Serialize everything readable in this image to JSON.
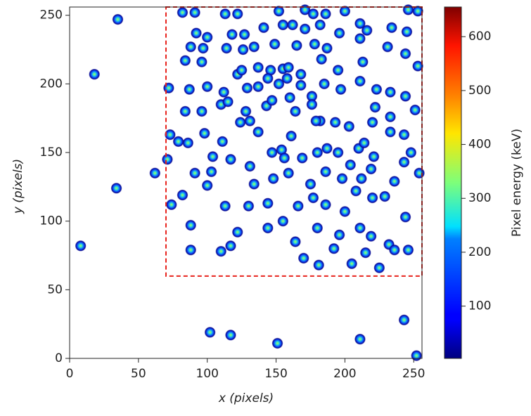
{
  "chart_data": {
    "type": "scatter",
    "xlabel": "x (pixels)",
    "ylabel": "y (pixels)",
    "xlim": [
      0,
      256
    ],
    "ylim": [
      0,
      256
    ],
    "xticks": [
      0,
      50,
      100,
      150,
      200,
      250
    ],
    "yticks": [
      0,
      50,
      100,
      150,
      200,
      250
    ],
    "region": {
      "x": [
        70,
        256
      ],
      "y": [
        60,
        256
      ],
      "color": "#e8231d"
    },
    "colorbar": {
      "label": "Pixel energy (keV)",
      "lim": [
        3,
        655
      ],
      "ticks": [
        100,
        200,
        300,
        400,
        500,
        600
      ],
      "colormap": "jet"
    },
    "x": [
      35,
      18,
      62,
      34,
      8,
      102,
      117,
      151,
      211,
      243,
      252,
      82,
      91,
      113,
      122,
      152,
      171,
      177,
      186,
      200,
      246,
      253,
      92,
      100,
      118,
      127,
      141,
      155,
      162,
      171,
      182,
      196,
      211,
      216,
      234,
      245,
      88,
      97,
      114,
      126,
      134,
      149,
      165,
      178,
      187,
      211,
      231,
      244,
      84,
      96,
      122,
      125,
      137,
      146,
      155,
      159,
      168,
      183,
      195,
      213,
      253,
      72,
      87,
      100,
      112,
      129,
      137,
      144,
      152,
      158,
      168,
      176,
      185,
      197,
      211,
      223,
      233,
      244,
      84,
      96,
      110,
      115,
      128,
      143,
      147,
      160,
      164,
      176,
      182,
      193,
      222,
      233,
      251,
      73,
      79,
      86,
      98,
      111,
      124,
      131,
      137,
      161,
      179,
      203,
      220,
      233,
      243,
      71,
      91,
      104,
      117,
      131,
      147,
      154,
      156,
      169,
      180,
      187,
      195,
      204,
      210,
      214,
      221,
      243,
      248,
      254,
      103,
      134,
      148,
      159,
      175,
      186,
      198,
      212,
      219,
      236,
      74,
      82,
      100,
      113,
      130,
      144,
      166,
      177,
      186,
      200,
      208,
      220,
      229,
      244,
      88,
      122,
      144,
      155,
      164,
      180,
      196,
      211,
      219,
      232,
      88,
      110,
      117,
      170,
      181,
      192,
      205,
      215,
      236,
      246,
      225
    ],
    "y": [
      247,
      207,
      135,
      124,
      82,
      19,
      17,
      11,
      14,
      28,
      2,
      252,
      252,
      251,
      251,
      253,
      254,
      251,
      251,
      253,
      254,
      253,
      237,
      234,
      236,
      236,
      241,
      243,
      243,
      240,
      243,
      237,
      244,
      239,
      241,
      238,
      227,
      226,
      226,
      225,
      227,
      229,
      228,
      229,
      226,
      233,
      227,
      222,
      217,
      216,
      207,
      210,
      212,
      210,
      211,
      212,
      207,
      218,
      210,
      216,
      213,
      197,
      196,
      198,
      194,
      197,
      198,
      204,
      200,
      204,
      199,
      191,
      200,
      196,
      202,
      196,
      194,
      191,
      180,
      180,
      185,
      187,
      180,
      184,
      188,
      190,
      180,
      185,
      173,
      172,
      183,
      176,
      181,
      163,
      158,
      157,
      164,
      158,
      172,
      173,
      165,
      162,
      173,
      169,
      172,
      165,
      163,
      145,
      135,
      147,
      145,
      140,
      150,
      152,
      146,
      146,
      150,
      153,
      150,
      141,
      153,
      157,
      147,
      143,
      150,
      135,
      136,
      127,
      131,
      135,
      127,
      136,
      131,
      131,
      138,
      129,
      112,
      119,
      126,
      111,
      111,
      113,
      111,
      117,
      112,
      107,
      122,
      117,
      118,
      103,
      97,
      92,
      95,
      100,
      85,
      95,
      90,
      95,
      89,
      83,
      79,
      78,
      82,
      73,
      68,
      80,
      69,
      77,
      79,
      79,
      66
    ]
  }
}
